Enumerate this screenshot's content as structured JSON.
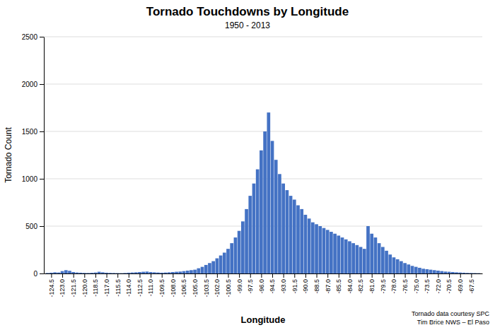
{
  "chart_data": {
    "type": "bar",
    "title": "Tornado Touchdowns by Longitude",
    "subtitle": "1950 - 2013",
    "xlabel": "Longitude",
    "ylabel": "Tornado Count",
    "credit": "Tornado data courtesy SPC\nTim Brice NWS – El Paso",
    "color": "#4472C4",
    "grid": true,
    "xlim": [
      -125.5,
      -66.0
    ],
    "xticks": [
      -124.5,
      {
        "value": -123,
        "label": "-123.0"
      },
      -121.5,
      {
        "value": -120,
        "label": "-120.0"
      },
      -118.5,
      {
        "value": -117,
        "label": "-117.0"
      },
      -115.5,
      {
        "value": -114,
        "label": "-114.0"
      },
      -112.5,
      {
        "value": -111,
        "label": "-111.0"
      },
      -109.5,
      {
        "value": -108,
        "label": "-108.0"
      },
      -106.5,
      {
        "value": -105,
        "label": "-105.0"
      },
      -103.5,
      {
        "value": -102,
        "label": "-102.0"
      },
      -100.5,
      {
        "value": -99,
        "label": "-99.0"
      },
      -97.5,
      {
        "value": -96,
        "label": "-96.0"
      },
      -94.5,
      {
        "value": -93,
        "label": "-93.0"
      },
      -91.5,
      {
        "value": -90,
        "label": "-90.0"
      },
      -88.5,
      {
        "value": -87,
        "label": "-87.0"
      },
      -85.5,
      {
        "value": -84,
        "label": "-84.0"
      },
      -82.5,
      {
        "value": -81,
        "label": "-81.0"
      },
      -79.5,
      {
        "value": -78,
        "label": "-78.0"
      },
      -76.5,
      {
        "value": -75,
        "label": "-75.0"
      },
      -73.5,
      {
        "value": -72,
        "label": "-72.0"
      },
      -70.5,
      {
        "value": -69,
        "label": "-69.0"
      },
      -67.5
    ],
    "ylim": [
      0,
      2500
    ],
    "yticks": [
      0,
      500,
      1000,
      1500,
      2000,
      2500
    ],
    "x": [
      -125.0,
      -124.5,
      -124.0,
      -123.5,
      -123.0,
      -122.5,
      -122.0,
      -121.5,
      -121.0,
      -120.5,
      -120.0,
      -119.5,
      -119.0,
      -118.5,
      -118.0,
      -117.5,
      -117.0,
      -116.5,
      -116.0,
      -115.5,
      -115.0,
      -114.5,
      -114.0,
      -113.5,
      -113.0,
      -112.5,
      -112.0,
      -111.5,
      -111.0,
      -110.5,
      -110.0,
      -109.5,
      -109.0,
      -108.5,
      -108.0,
      -107.5,
      -107.0,
      -106.5,
      -106.0,
      -105.5,
      -105.0,
      -104.5,
      -104.0,
      -103.5,
      -103.0,
      -102.5,
      -102.0,
      -101.5,
      -101.0,
      -100.5,
      -100.0,
      -99.5,
      -99.0,
      -98.5,
      -98.0,
      -97.5,
      -97.0,
      -96.5,
      -96.0,
      -95.5,
      -95.0,
      -94.5,
      -94.0,
      -93.5,
      -93.0,
      -92.5,
      -92.0,
      -91.5,
      -91.0,
      -90.5,
      -90.0,
      -89.5,
      -89.0,
      -88.5,
      -88.0,
      -87.5,
      -87.0,
      -86.5,
      -86.0,
      -85.5,
      -85.0,
      -84.5,
      -84.0,
      -83.5,
      -83.0,
      -82.5,
      -82.0,
      -81.5,
      -81.0,
      -80.5,
      -80.0,
      -79.5,
      -79.0,
      -78.5,
      -78.0,
      -77.5,
      -77.0,
      -76.5,
      -76.0,
      -75.5,
      -75.0,
      -74.5,
      -74.0,
      -73.5,
      -73.0,
      -72.5,
      -72.0,
      -71.5,
      -71.0,
      -70.5,
      -70.0,
      -69.5,
      -69.0,
      -68.5,
      -68.0,
      -67.5,
      -67.0,
      -66.5
    ],
    "values": [
      5,
      8,
      12,
      10,
      25,
      35,
      28,
      15,
      10,
      8,
      6,
      5,
      7,
      10,
      18,
      12,
      8,
      6,
      5,
      4,
      3,
      5,
      8,
      10,
      12,
      15,
      18,
      20,
      15,
      12,
      10,
      8,
      10,
      12,
      15,
      18,
      20,
      25,
      30,
      35,
      40,
      55,
      70,
      90,
      110,
      130,
      160,
      190,
      220,
      260,
      320,
      380,
      450,
      550,
      680,
      820,
      950,
      1100,
      1300,
      1500,
      1700,
      1400,
      1200,
      1050,
      950,
      880,
      820,
      780,
      720,
      680,
      620,
      580,
      540,
      520,
      500,
      480,
      460,
      440,
      420,
      400,
      380,
      360,
      340,
      320,
      300,
      280,
      260,
      500,
      420,
      380,
      320,
      280,
      240,
      200,
      170,
      150,
      130,
      110,
      95,
      80,
      70,
      60,
      50,
      45,
      40,
      35,
      30,
      25,
      20,
      18,
      15,
      12,
      10,
      8,
      6,
      5,
      4,
      3
    ]
  }
}
